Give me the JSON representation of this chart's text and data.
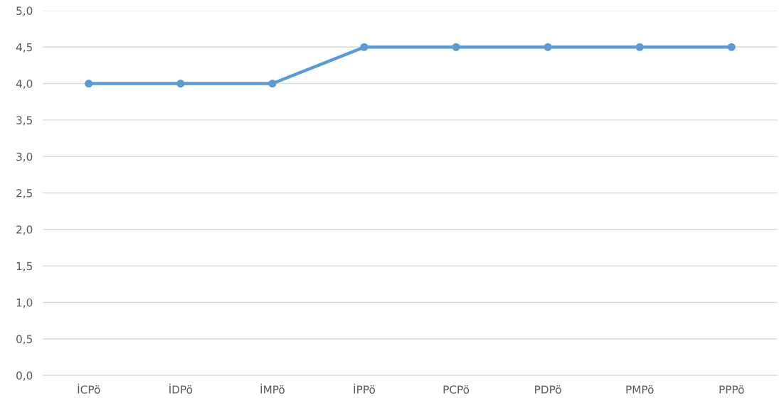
{
  "chart_data": {
    "type": "line",
    "categories": [
      "İCPö",
      "İDPö",
      "İMPö",
      "İPPö",
      "PCPö",
      "PDPö",
      "PMPö",
      "PPPö"
    ],
    "series": [
      {
        "color": "#5b9bd5",
        "values": [
          4.0,
          4.0,
          4.0,
          4.5,
          4.5,
          4.5,
          4.5,
          4.5
        ]
      }
    ],
    "ylim": [
      0,
      5
    ],
    "yticks": [
      {
        "value": 0,
        "label": "0,0"
      },
      {
        "value": 0.5,
        "label": "0,5"
      },
      {
        "value": 1,
        "label": "1,0"
      },
      {
        "value": 1.5,
        "label": "1,5"
      },
      {
        "value": 2,
        "label": "2,0"
      },
      {
        "value": 2.5,
        "label": "2,5"
      },
      {
        "value": 3,
        "label": "3,0"
      },
      {
        "value": 3.5,
        "label": "3,5"
      },
      {
        "value": 4,
        "label": "4,0"
      },
      {
        "value": 4.5,
        "label": "4,5"
      },
      {
        "value": 5,
        "label": "5,0"
      }
    ],
    "grid": "y",
    "marker": "circle",
    "line_style": "solid"
  }
}
